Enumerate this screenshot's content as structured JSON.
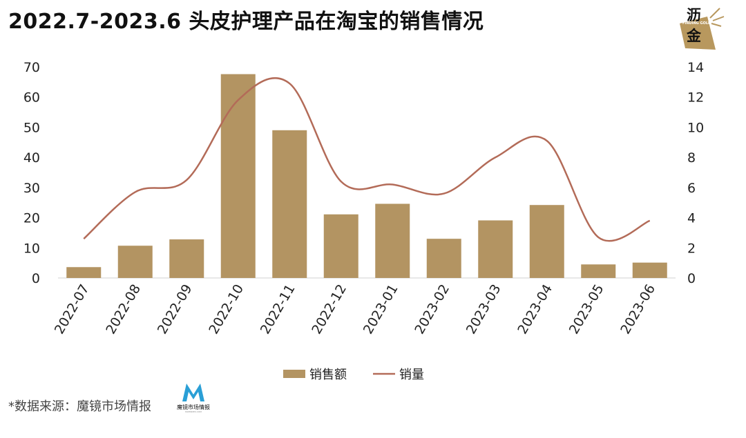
{
  "title": "2022.7-2023.6 头皮护理产品在淘宝的销售情况",
  "logo": {
    "line1": "沥",
    "line2": "金",
    "sub": "FINDING GOLD"
  },
  "source": {
    "text": "*数据来源：魔镜市场情报",
    "logo_name": "魔镜市场情报",
    "logo_sub": "MATINDEX.COM"
  },
  "colors": {
    "bar": "#b39462",
    "line": "#b36b58",
    "logo_gold": "#b8985e",
    "logo_m": "#2a9fd6"
  },
  "chart_data": {
    "type": "bar",
    "categories": [
      "2022-07",
      "2022-08",
      "2022-09",
      "2022-10",
      "2022-11",
      "2022-12",
      "2023-01",
      "2023-02",
      "2023-03",
      "2023-04",
      "2023-05",
      "2023-06"
    ],
    "series": [
      {
        "name": "销售额",
        "type": "bar",
        "axis": "left",
        "values": [
          3.6,
          10.7,
          12.8,
          67.6,
          49.0,
          21.1,
          24.6,
          13.0,
          19.1,
          24.2,
          4.5,
          5.1
        ]
      },
      {
        "name": "销量",
        "type": "line",
        "axis": "right",
        "values": [
          2.6,
          5.7,
          6.5,
          11.8,
          12.9,
          6.4,
          6.2,
          5.6,
          8.0,
          9.1,
          2.7,
          3.8
        ]
      }
    ],
    "y_left": {
      "min": 0,
      "max": 70,
      "ticks": [
        "0",
        "10",
        "20",
        "30",
        "40",
        "50",
        "60",
        "70"
      ]
    },
    "y_right": {
      "min": 0,
      "max": 14,
      "ticks": [
        "0",
        "2",
        "4",
        "6",
        "8",
        "10",
        "12",
        "14"
      ]
    },
    "grid": false,
    "legend_position": "bottom"
  }
}
